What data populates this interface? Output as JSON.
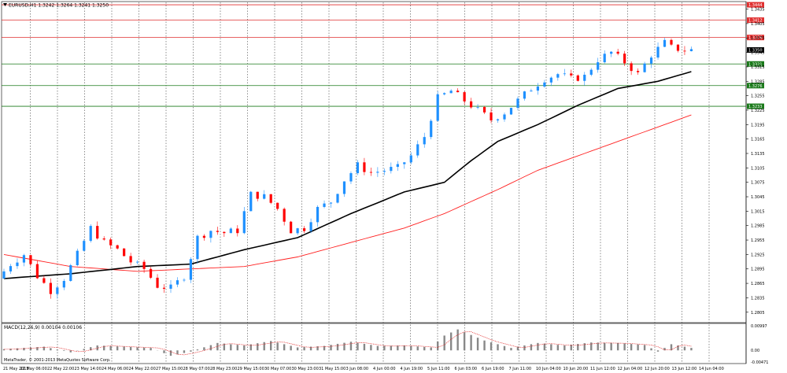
{
  "window": {
    "title": "EURUSD,H1  1.3242 1.3264 1.3241 1.3250",
    "copyright": "MetaTrader, © 2001-2013 MetaQuotes Software Corp."
  },
  "colors": {
    "background": "#ffffff",
    "bull_candle": "#1e90ff",
    "bear_candle": "#ff0000",
    "ma_fast": "#000000",
    "ma_slow": "#ff2020",
    "resistance": "#e03030",
    "support": "#1a7a1a",
    "grid": "#444444"
  },
  "price_scale": [
    "1.3435",
    "1.3405",
    "1.3375",
    "1.3345",
    "1.3315",
    "1.3285",
    "1.3255",
    "1.3225",
    "1.3195",
    "1.3165",
    "1.3135",
    "1.3105",
    "1.3075",
    "1.3045",
    "1.3015",
    "1.2985",
    "1.2955",
    "1.2925",
    "1.2895",
    "1.2865",
    "1.2835",
    "1.2805"
  ],
  "levels": [
    {
      "label": "1.3444",
      "kind": "resistance",
      "price": 1.3444
    },
    {
      "label": "1.3412",
      "kind": "resistance",
      "price": 1.3412
    },
    {
      "label": "1.3376",
      "kind": "resistance",
      "price": 1.3376
    },
    {
      "label": "1.3350",
      "kind": "current",
      "price": 1.335
    },
    {
      "label": "1.3321",
      "kind": "support",
      "price": 1.3321
    },
    {
      "label": "1.3276",
      "kind": "support",
      "price": 1.3276
    },
    {
      "label": "1.3233",
      "kind": "support",
      "price": 1.3233
    }
  ],
  "time_axis": [
    "21 May 2013",
    "22 May 06:00",
    "22 May 22:00",
    "23 May 14:00",
    "24 May 06:00",
    "24 May 22:00",
    "27 May 15:00",
    "28 May 07:00",
    "28 May 23:00",
    "29 May 15:00",
    "30 May 07:00",
    "30 May 23:00",
    "31 May 15:00",
    "3 Jun 08:00",
    "4 Jun 00:00",
    "4 Jun 19:00",
    "5 Jun 11:00",
    "6 Jun 03:00",
    "6 Jun 19:00",
    "7 Jun 11:00",
    "10 Jun 04:00",
    "10 Jun 20:00",
    "11 Jun 12:00",
    "12 Jun 04:00",
    "12 Jun 20:00",
    "13 Jun 12:00",
    "14 Jun 04:00"
  ],
  "macd": {
    "label": "MACD(12,26,9) 0.00104 0.00106",
    "scale": [
      "0.00997",
      "0.00",
      "-0.00471"
    ]
  },
  "chart_data": {
    "type": "candlestick",
    "symbol": "EURUSD",
    "timeframe": "H1",
    "ylim": [
      1.2785,
      1.3449
    ],
    "price_path": [
      [
        0,
        1.2875
      ],
      [
        2,
        1.2905
      ],
      [
        4,
        1.2925
      ],
      [
        6,
        1.288
      ],
      [
        8,
        1.285
      ],
      [
        10,
        1.2875
      ],
      [
        12,
        1.2925
      ],
      [
        14,
        1.298
      ],
      [
        16,
        1.295
      ],
      [
        18,
        1.2935
      ],
      [
        20,
        1.291
      ],
      [
        22,
        1.2895
      ],
      [
        24,
        1.286
      ],
      [
        26,
        1.2855
      ],
      [
        28,
        1.288
      ],
      [
        30,
        1.296
      ],
      [
        32,
        1.2975
      ],
      [
        34,
        1.297
      ],
      [
        36,
        1.2975
      ],
      [
        38,
        1.305
      ],
      [
        40,
        1.3045
      ],
      [
        42,
        1.302
      ],
      [
        44,
        1.2975
      ],
      [
        46,
        1.298
      ],
      [
        48,
        1.302
      ],
      [
        50,
        1.3035
      ],
      [
        52,
        1.308
      ],
      [
        54,
        1.311
      ],
      [
        56,
        1.3095
      ],
      [
        58,
        1.31
      ],
      [
        60,
        1.3105
      ],
      [
        62,
        1.313
      ],
      [
        64,
        1.317
      ],
      [
        66,
        1.325
      ],
      [
        68,
        1.3265
      ],
      [
        70,
        1.3245
      ],
      [
        72,
        1.3225
      ],
      [
        74,
        1.3205
      ],
      [
        76,
        1.322
      ],
      [
        78,
        1.3245
      ],
      [
        80,
        1.327
      ],
      [
        82,
        1.329
      ],
      [
        84,
        1.33
      ],
      [
        86,
        1.329
      ],
      [
        88,
        1.3295
      ],
      [
        90,
        1.333
      ],
      [
        92,
        1.3345
      ],
      [
        94,
        1.3325
      ],
      [
        96,
        1.33
      ],
      [
        98,
        1.334
      ],
      [
        100,
        1.3365
      ],
      [
        101,
        1.3355
      ],
      [
        103,
        1.335
      ]
    ],
    "ma_fast": [
      [
        0,
        1.2875
      ],
      [
        10,
        1.2885
      ],
      [
        20,
        1.29
      ],
      [
        28,
        1.2905
      ],
      [
        36,
        1.2935
      ],
      [
        44,
        1.296
      ],
      [
        52,
        1.301
      ],
      [
        60,
        1.3055
      ],
      [
        66,
        1.3075
      ],
      [
        70,
        1.312
      ],
      [
        74,
        1.316
      ],
      [
        80,
        1.3195
      ],
      [
        86,
        1.3235
      ],
      [
        92,
        1.327
      ],
      [
        98,
        1.3285
      ],
      [
        103,
        1.3305
      ]
    ],
    "ma_slow": [
      [
        0,
        1.2925
      ],
      [
        10,
        1.29
      ],
      [
        20,
        1.289
      ],
      [
        28,
        1.2895
      ],
      [
        36,
        1.29
      ],
      [
        44,
        1.292
      ],
      [
        52,
        1.295
      ],
      [
        60,
        1.298
      ],
      [
        66,
        1.301
      ],
      [
        74,
        1.306
      ],
      [
        80,
        1.31
      ],
      [
        86,
        1.313
      ],
      [
        92,
        1.316
      ],
      [
        98,
        1.319
      ],
      [
        103,
        1.3215
      ]
    ],
    "macd_profile": [
      [
        0,
        0.0005
      ],
      [
        6,
        0.0015
      ],
      [
        10,
        -0.0008
      ],
      [
        14,
        0.002
      ],
      [
        18,
        0.0015
      ],
      [
        22,
        0.001
      ],
      [
        25,
        -0.0022
      ],
      [
        28,
        -0.0005
      ],
      [
        32,
        0.003
      ],
      [
        36,
        0.002
      ],
      [
        40,
        0.0038
      ],
      [
        44,
        0.0012
      ],
      [
        48,
        0.0018
      ],
      [
        52,
        0.0035
      ],
      [
        56,
        0.0018
      ],
      [
        60,
        0.002
      ],
      [
        64,
        0.0012
      ],
      [
        66,
        0.006
      ],
      [
        68,
        0.0085
      ],
      [
        72,
        0.004
      ],
      [
        76,
        0.001
      ],
      [
        80,
        0.003
      ],
      [
        84,
        0.002
      ],
      [
        88,
        0.0032
      ],
      [
        92,
        0.003
      ],
      [
        96,
        0.0022
      ],
      [
        98,
        -0.0005
      ],
      [
        100,
        0.0025
      ],
      [
        103,
        0.001
      ]
    ]
  }
}
